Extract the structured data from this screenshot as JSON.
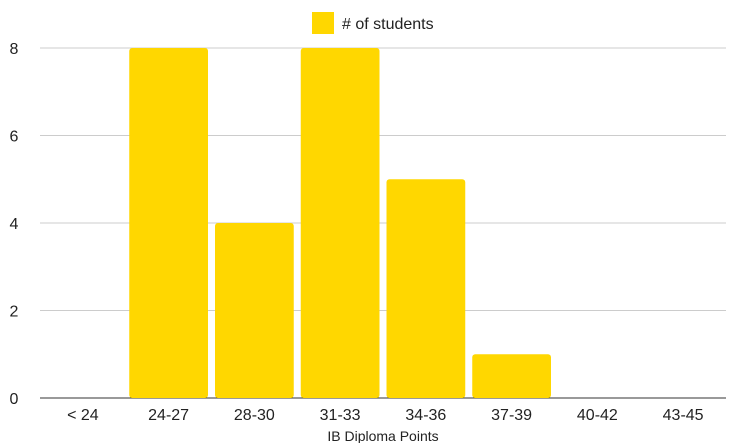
{
  "chart_data": {
    "type": "bar",
    "title": "",
    "xlabel": "IB Diploma Points",
    "ylabel": "",
    "categories": [
      "< 24",
      "24-27",
      "28-30",
      "31-33",
      "34-36",
      "37-39",
      "40-42",
      "43-45"
    ],
    "series": [
      {
        "name": "# of students",
        "values": [
          0,
          8,
          4,
          8,
          5,
          1,
          0,
          0
        ],
        "color": "#FFD700"
      }
    ],
    "ylim": [
      0,
      8
    ],
    "yticks": [
      0,
      2,
      4,
      6,
      8
    ],
    "grid": true,
    "legend": "top-center"
  }
}
